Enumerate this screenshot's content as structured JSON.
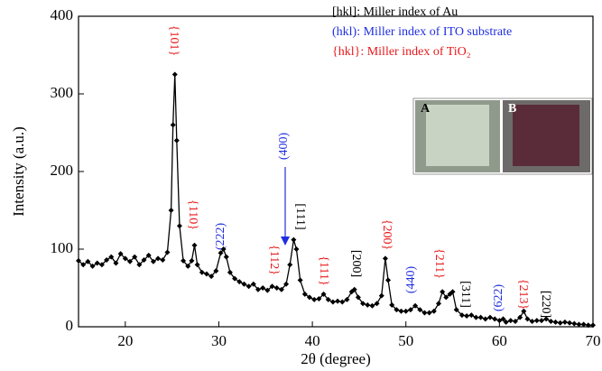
{
  "chart_data": {
    "type": "line",
    "x_label": "2θ (degree)",
    "y_label": "Intensity (a.u.)",
    "xlim": [
      15,
      70
    ],
    "ylim": [
      0,
      400
    ],
    "xticks": [
      20,
      30,
      40,
      50,
      60,
      70
    ],
    "yticks": [
      0,
      100,
      200,
      300,
      400
    ],
    "legend_notes": [
      "[hkl]: Miller index of Au",
      "(hkl): Miller index of ITO substrate",
      "{hkl}: Miller index of TiO₂"
    ],
    "inset_labels": [
      "A",
      "B"
    ],
    "annotations": [
      "{101}",
      "{110}",
      "(222)",
      "{112}",
      "(400)",
      "[111]",
      "{111}",
      "[200]",
      "{200}",
      "(440)",
      "{211}",
      "[311]",
      "(622)",
      "{213}",
      "[220]"
    ],
    "color": "#000000",
    "x": [
      15,
      15.5,
      16,
      16.5,
      17,
      17.5,
      18,
      18.5,
      19,
      19.5,
      20,
      20.5,
      21,
      21.5,
      22,
      22.5,
      23,
      23.5,
      24,
      24.5,
      24.9,
      25.1,
      25.3,
      25.5,
      25.8,
      26.2,
      26.7,
      27.1,
      27.4,
      27.7,
      28.2,
      28.7,
      29.2,
      29.7,
      30.2,
      30.5,
      30.8,
      31.2,
      31.7,
      32.2,
      32.7,
      33.2,
      33.7,
      34.2,
      34.7,
      35.2,
      35.7,
      36.2,
      36.7,
      37.2,
      37.6,
      38,
      38.3,
      38.7,
      39.2,
      39.7,
      40.2,
      40.7,
      41.2,
      41.7,
      42.2,
      42.7,
      43.2,
      43.7,
      44.2,
      44.5,
      44.9,
      45.4,
      45.9,
      46.4,
      46.9,
      47.4,
      47.8,
      48.1,
      48.5,
      49,
      49.5,
      50,
      50.5,
      51,
      51.5,
      52,
      52.5,
      53,
      53.5,
      53.9,
      54.3,
      54.7,
      55,
      55.4,
      56,
      56.5,
      57,
      57.5,
      58,
      58.5,
      59,
      59.5,
      60,
      60.4,
      60.7,
      61.2,
      61.7,
      62.2,
      62.6,
      63,
      63.5,
      64,
      64.5,
      65,
      65.5,
      66,
      66.5,
      67,
      67.5,
      68,
      68.5,
      69,
      69.5,
      70
    ],
    "values": [
      85,
      80,
      84,
      78,
      82,
      80,
      86,
      90,
      82,
      94,
      88,
      84,
      90,
      80,
      86,
      92,
      84,
      88,
      86,
      96,
      150,
      260,
      325,
      240,
      130,
      85,
      78,
      85,
      105,
      80,
      70,
      68,
      65,
      72,
      95,
      100,
      90,
      70,
      62,
      58,
      55,
      52,
      55,
      48,
      50,
      47,
      52,
      50,
      48,
      55,
      80,
      112,
      100,
      60,
      42,
      38,
      35,
      36,
      42,
      35,
      32,
      33,
      32,
      35,
      45,
      48,
      38,
      30,
      28,
      27,
      30,
      40,
      88,
      60,
      28,
      22,
      20,
      20,
      22,
      27,
      22,
      18,
      18,
      20,
      30,
      45,
      38,
      42,
      45,
      22,
      15,
      14,
      15,
      12,
      12,
      10,
      12,
      10,
      8,
      10,
      6,
      8,
      7,
      12,
      20,
      10,
      7,
      8,
      8,
      10,
      7,
      6,
      5,
      6,
      5,
      4,
      3,
      3,
      2,
      2
    ]
  }
}
